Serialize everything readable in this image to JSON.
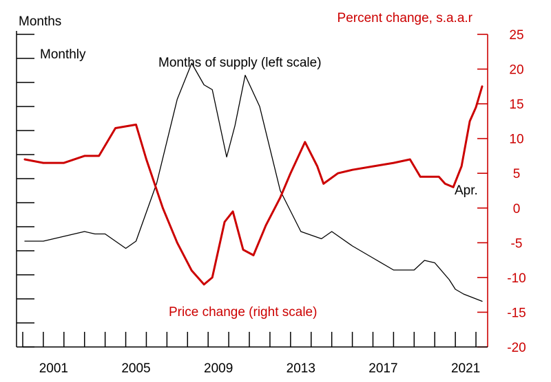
{
  "chart_data": {
    "type": "line",
    "left_axis": {
      "title": "Months",
      "range": [
        0,
        13
      ],
      "ticks": [
        0,
        1,
        2,
        3,
        4,
        5,
        6,
        7,
        8,
        9,
        10,
        11,
        12,
        13
      ]
    },
    "right_axis": {
      "title": "Percent change, s.a.a.r",
      "range": [
        -20,
        25
      ],
      "ticks": [
        25,
        20,
        15,
        10,
        5,
        0,
        -5,
        -10,
        -15,
        -20
      ],
      "tick_labels": [
        "25",
        "20",
        "15",
        "10",
        "5",
        "0",
        "-5",
        "-10",
        "-15",
        "-20"
      ]
    },
    "x_axis": {
      "range": [
        2000,
        2022.5
      ],
      "tick_labels": [
        "2001",
        "2005",
        "2009",
        "2013",
        "2017",
        "2021"
      ],
      "label_years": [
        2001,
        2005,
        2009,
        2013,
        2017,
        2021
      ]
    },
    "annotations": {
      "frequency": "Monthly",
      "endpoint": "Apr."
    },
    "series": [
      {
        "name": "Months of supply (left scale)",
        "axis": "left",
        "color": "#000000",
        "x": [
          2000.1,
          2001,
          2002,
          2003,
          2003.5,
          2004,
          2005,
          2005.5,
          2006.5,
          2007.5,
          2008.2,
          2008.8,
          2009.2,
          2009.9,
          2010.3,
          2010.8,
          2011.5,
          2012.5,
          2013.5,
          2014.5,
          2015.0,
          2016.0,
          2017.0,
          2018.0,
          2019.0,
          2019.5,
          2020.0,
          2020.7,
          2021.0,
          2021.4,
          2022.3
        ],
        "y": [
          4.4,
          4.4,
          4.6,
          4.8,
          4.7,
          4.7,
          4.1,
          4.4,
          6.8,
          10.3,
          11.8,
          10.9,
          10.7,
          7.9,
          9.2,
          11.3,
          10.0,
          6.5,
          4.8,
          4.5,
          4.8,
          4.2,
          3.7,
          3.2,
          3.2,
          3.6,
          3.5,
          2.8,
          2.4,
          2.2,
          1.9
        ]
      },
      {
        "name": "Price change (right scale)",
        "axis": "right",
        "color": "#cc0000",
        "x": [
          2000.1,
          2001,
          2002,
          2003,
          2003.7,
          2004.5,
          2005.5,
          2006.0,
          2006.8,
          2007.5,
          2008.2,
          2008.8,
          2009.2,
          2009.8,
          2010.2,
          2010.7,
          2011.2,
          2011.8,
          2012.5,
          2013.0,
          2013.7,
          2014.3,
          2014.6,
          2015.3,
          2016.0,
          2017.0,
          2018.0,
          2018.8,
          2019.3,
          2019.7,
          2020.2,
          2020.5,
          2020.9,
          2021.3,
          2021.7,
          2022.0,
          2022.3
        ],
        "y": [
          7,
          6.5,
          6.5,
          7.5,
          7.5,
          11.5,
          12,
          7,
          0,
          -5,
          -9,
          -11,
          -10,
          -2,
          -0.5,
          -6,
          -6.8,
          -2.5,
          1.5,
          5,
          9.5,
          6,
          3.5,
          5,
          5.5,
          6,
          6.5,
          7,
          4.5,
          4.5,
          4.5,
          3.5,
          3,
          6,
          12.5,
          14.5,
          17.5
        ]
      }
    ],
    "grid": false,
    "colors": {
      "left": "#000000",
      "right": "#cc0000"
    }
  }
}
